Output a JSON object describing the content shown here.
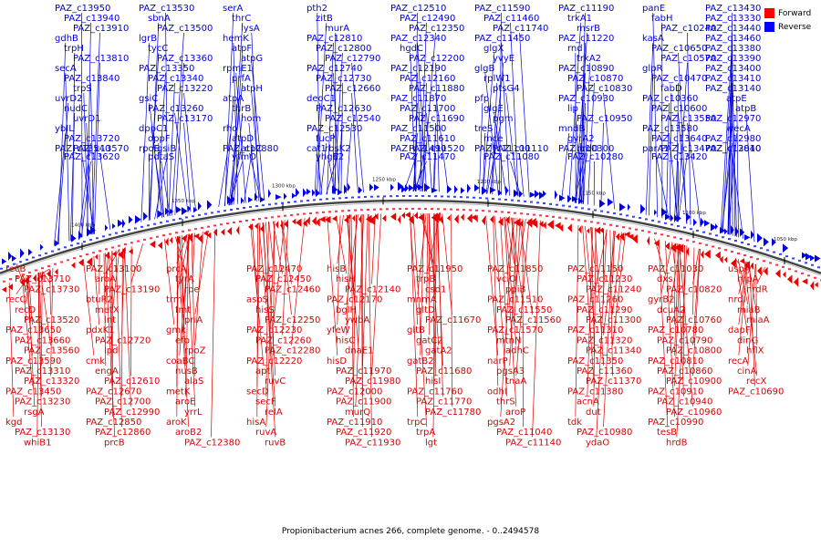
{
  "caption": "Propionibacterium acnes 266, complete genome. - 0..2494578",
  "legend": [
    {
      "label": "Forward",
      "color": "#ff0000"
    },
    {
      "label": "Reverse",
      "color": "#0000ff"
    }
  ],
  "scale_ticks": [
    "1400 kbp",
    "1350 kbp",
    "1300 kbp",
    "1250 kbp",
    "1200 kbp",
    "1150 kbp",
    "1100 kbp",
    "1050 kbp"
  ],
  "reverse_genes": [
    "PAZ_c13950",
    "PAZ_c13940",
    "PAZ_c13910",
    "gdhB",
    "trpH",
    "PAZ_c13810",
    "secA",
    "PAZ_c13840",
    "trpS",
    "uvrD2",
    "nudC",
    "uvrD1",
    "ybIL",
    "PAZ_c13720",
    "PAZ_c13570",
    "PAZ_c13540",
    "PAZ_c13620",
    "PAZ_c13530",
    "sbnA",
    "PAZ_c13500",
    "lgrB",
    "tycC",
    "PAZ_c13360",
    "PAZ_c13350",
    "PAZ_c13340",
    "PAZ_c13220",
    "gsiC",
    "PAZ_c13260",
    "PAZ_c13170",
    "dppC1",
    "oppF",
    "gsiB",
    "rpoE",
    "pdtaS",
    "serA",
    "thrC",
    "lysA",
    "hemK",
    "atpF",
    "atpG",
    "rpmE1",
    "prfA",
    "atpH",
    "atpA",
    "thrB",
    "hom",
    "rho",
    "atpD",
    "atpC",
    "PAZ_c12880",
    "yfmO",
    "pth2",
    "zitB",
    "murA",
    "PAZ_c12810",
    "PAZ_c12800",
    "PAZ_c12790",
    "PAZ_c12740",
    "PAZ_c12730",
    "PAZ_c12660",
    "deoC1",
    "PAZ_c12630",
    "PAZ_c12540",
    "PAZ_c12530",
    "fucP",
    "rbsK2",
    "cat1",
    "yhgE2",
    "PAZ_c12510",
    "PAZ_c12490",
    "PAZ_c12350",
    "PAZ_c12340",
    "hgdC",
    "PAZ_c12200",
    "PAZ_c12190",
    "PAZ_c12160",
    "PAZ_c11880",
    "PAZ_c11870",
    "PAZ_c11700",
    "PAZ_c11690",
    "PAZ_c11500",
    "PAZ_c11610",
    "PAZ_c11520",
    "PAZ_c11490",
    "PAZ_c11470",
    "PAZ_c11590",
    "PAZ_c11460",
    "PAZ_c11740",
    "PAZ_c11450",
    "glgX",
    "yvyE",
    "glgB",
    "rplW1",
    "ptsG4",
    "pfp",
    "glgE",
    "pgm",
    "treS",
    "mce",
    "PAZ_c11110",
    "PAZ_c11100",
    "PAZ_c11080",
    "PAZ_c11190",
    "trkA1",
    "msrB",
    "PAZ_c11220",
    "rnd",
    "trkA2",
    "PAZ_c10890",
    "PAZ_c10870",
    "PAZ_c10830",
    "PAZ_c10930",
    "lip",
    "PAZ_c10950",
    "mndB",
    "gyrA2",
    "hrdD",
    "PAZ_c10300",
    "PAZ_c10280",
    "panE",
    "fabH",
    "PAZ_c10240",
    "kasA",
    "PAZ_c10650",
    "PAZ_c10570",
    "glpR",
    "PAZ_c10470",
    "fabD",
    "PAZ_c10360",
    "PAZ_c10600",
    "PAZ_c13550",
    "PAZ_c13580",
    "PAZ_c13640",
    "PAZ_c13470",
    "parA1",
    "PAZ_c13420",
    "PAZ_c13430",
    "PAZ_c13330",
    "PAZ_c13440",
    "PAZ_c13460",
    "PAZ_c13380",
    "PAZ_c13390",
    "PAZ_c13400",
    "PAZ_c13410",
    "PAZ_c13140",
    "atpE",
    "atpB",
    "PAZ_c12970",
    "wecA",
    "PAZ_c12980",
    "PAZ_c12840",
    "PAZ_c13010"
  ],
  "forward_genes": [
    "recB",
    "PAZ_c13710",
    "PAZ_c13730",
    "recC",
    "recD",
    "PAZ_c13520",
    "PAZ_c13650",
    "PAZ_c13660",
    "PAZ_c13560",
    "PAZ_c13590",
    "PAZ_c13310",
    "PAZ_c13320",
    "PAZ_c13450",
    "PAZ_c13230",
    "rsgA",
    "kgd",
    "PAZ_c13130",
    "whiB1",
    "PAZ_c13100",
    "aroA",
    "PAZ_c13190",
    "btuR2",
    "metX",
    "lnt",
    "pdxK1",
    "PAZ_c12720",
    "lpd",
    "cmk",
    "engA",
    "PAZ_c12610",
    "PAZ_c12670",
    "PAZ_c12700",
    "PAZ_c12990",
    "PAZ_c12850",
    "PAZ_c12860",
    "prcB",
    "prcA",
    "tyrA",
    "rpe",
    "trmI",
    "fmt",
    "priA",
    "gmk",
    "efp",
    "rpoZ",
    "coaBC",
    "nusB",
    "alaS",
    "metK",
    "aroE",
    "yrrL",
    "aroK",
    "aroB2",
    "PAZ_c12380",
    "PAZ_c12470",
    "PAZ_c12450",
    "PAZ_c12460",
    "aspS",
    "hisS",
    "PAZ_c12250",
    "PAZ_c12230",
    "PAZ_c12260",
    "PAZ_c12280",
    "PAZ_c12220",
    "apt",
    "ruvC",
    "secD",
    "secF",
    "relA",
    "hisA",
    "ruvA",
    "ruvB",
    "hisB",
    "hisH",
    "PAZ_c12140",
    "PAZ_c12170",
    "bglH",
    "ywbA",
    "yfeW",
    "hisC",
    "dnaE1",
    "hisD",
    "PAZ_c11970",
    "PAZ_c11980",
    "PAZ_c12000",
    "PAZ_c11900",
    "murQ",
    "PAZ_c11910",
    "PAZ_c11920",
    "PAZ_c11930",
    "PAZ_c11950",
    "trpB",
    "csd1",
    "mnmA",
    "gltD",
    "PAZ_c11670",
    "gltB",
    "gatC2",
    "gatA2",
    "gatB2",
    "PAZ_c11680",
    "hisI",
    "PAZ_c11760",
    "PAZ_c11770",
    "PAZ_c11780",
    "trpC",
    "trpA",
    "lgt",
    "PAZ_c11850",
    "vciO",
    "ppiB",
    "PAZ_c11510",
    "PAZ_c11550",
    "PAZ_c11560",
    "PAZ_c11570",
    "mtnN",
    "adhC",
    "narP",
    "pgsA3",
    "tnaA",
    "odhI",
    "thrS",
    "aroP",
    "pgsA2",
    "PAZ_c11040",
    "PAZ_c11140",
    "PAZ_c11150",
    "PAZ_c11230",
    "PAZ_c11240",
    "PAZ_c11260",
    "PAZ_c11290",
    "PAZ_c11300",
    "PAZ_c11310",
    "PAZ_c11320",
    "PAZ_c11340",
    "PAZ_c11350",
    "PAZ_c11360",
    "PAZ_c11370",
    "PAZ_c11380",
    "acnA",
    "dut",
    "tdk",
    "PAZ_c10980",
    "ydaO",
    "PAZ_c11030",
    "dxs",
    "PAZ_c10820",
    "gyrB2",
    "dcuA2",
    "PAZ_c10760",
    "PAZ_c10780",
    "PAZ_c10790",
    "PAZ_c10800",
    "PAZ_c10810",
    "PAZ_c10860",
    "PAZ_c10900",
    "PAZ_c10910",
    "PAZ_c10940",
    "PAZ_c10960",
    "PAZ_c10990",
    "tesB",
    "hrdB",
    "uspA",
    "hrpA",
    "nrdR",
    "nrdI",
    "miaB",
    "miaA",
    "dapF",
    "dinG",
    "hflX",
    "recA",
    "cinA",
    "recX",
    "PAZ_c10690"
  ]
}
